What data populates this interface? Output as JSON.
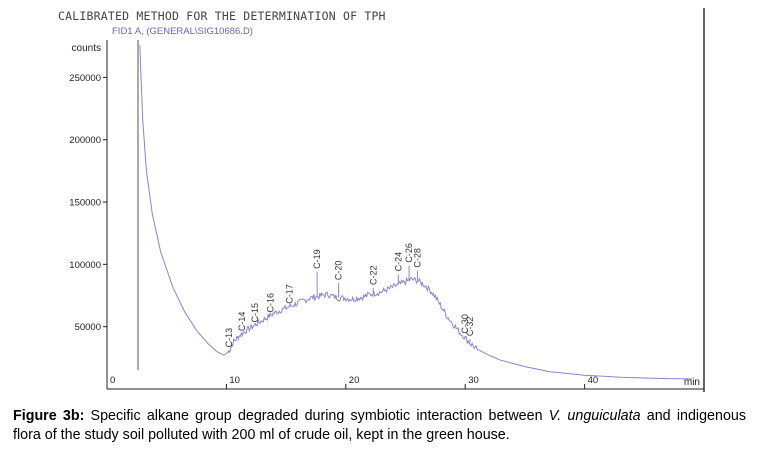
{
  "header": {
    "method_title": "CALIBRATED METHOD FOR THE DETERMINATION OF TPH",
    "signal_label": "FID1 A, (GENERAL\\SIG10686.D)"
  },
  "chart_data": {
    "type": "line",
    "title": "CALIBRATED METHOD FOR THE DETERMINATION OF TPH",
    "subtitle": "FID1 A, (GENERAL\\SIG10686.D)",
    "ylabel": "counts",
    "xlabel": "min",
    "xlim": [
      0,
      50
    ],
    "ylim": [
      0,
      280000
    ],
    "y_ticks": [
      50000,
      100000,
      150000,
      200000,
      250000
    ],
    "x_ticks": [
      0,
      10,
      20,
      30,
      40
    ],
    "grid": false,
    "series": [
      {
        "color": "#8a84d0",
        "x": [
          2.75,
          2.85,
          3.0,
          3.3,
          3.8,
          4.5,
          5.5,
          6.5,
          7.5,
          8.5,
          9.2,
          9.8,
          10.2,
          10.6,
          11.0,
          11.5,
          12.0,
          12.5,
          13.0,
          13.5,
          14.0,
          14.5,
          15.0,
          15.5,
          16.0,
          16.5,
          17.0,
          17.5,
          18.0,
          18.5,
          19.0,
          19.5,
          20.0,
          20.5,
          21.0,
          21.5,
          22.0,
          22.5,
          23.0,
          23.5,
          24.0,
          24.5,
          25.0,
          25.5,
          26.0,
          26.5,
          27.0,
          27.5,
          28.0,
          28.5,
          29.0,
          29.5,
          30.0,
          30.5,
          31.0,
          32.0,
          33.0,
          35.0,
          37.0,
          40.0,
          43.0,
          46.0,
          49.0
        ],
        "y": [
          276000,
          250000,
          215000,
          175000,
          140000,
          110000,
          82000,
          62000,
          47000,
          36000,
          30000,
          27000,
          30000,
          38000,
          42000,
          46000,
          49000,
          52000,
          55000,
          58000,
          61000,
          63000,
          65000,
          67000,
          69000,
          71000,
          73000,
          74000,
          75000,
          76000,
          74000,
          73000,
          73000,
          72000,
          73000,
          74000,
          76000,
          77000,
          78000,
          80000,
          82000,
          84000,
          86000,
          88000,
          87000,
          84000,
          80000,
          74000,
          66000,
          58000,
          52000,
          46000,
          41000,
          36000,
          32000,
          27000,
          23000,
          18000,
          14000,
          11000,
          9500,
          8500,
          8000
        ]
      }
    ],
    "peaks": [
      {
        "label": "C-13",
        "x": 10.2,
        "y": 31000
      },
      {
        "label": "C-14",
        "x": 11.3,
        "y": 44000
      },
      {
        "label": "C-15",
        "x": 12.4,
        "y": 51000
      },
      {
        "label": "C-16",
        "x": 13.7,
        "y": 59000
      },
      {
        "label": "C-17",
        "x": 15.3,
        "y": 66000
      },
      {
        "label": "C-19",
        "x": 17.6,
        "y": 94000
      },
      {
        "label": "C-20",
        "x": 19.4,
        "y": 85000
      },
      {
        "label": "C-22",
        "x": 22.3,
        "y": 81000
      },
      {
        "label": "C-24",
        "x": 24.4,
        "y": 92000
      },
      {
        "label": "C-26",
        "x": 25.3,
        "y": 99000
      },
      {
        "label": "C-28",
        "x": 26.0,
        "y": 95000
      },
      {
        "label": "C-30",
        "x": 30.0,
        "y": 42000
      },
      {
        "label": "C-32",
        "x": 30.4,
        "y": 40000
      }
    ]
  },
  "caption": {
    "label": "Figure 3b:",
    "text_before_species": " Specific alkane group degraded during symbiotic interaction between ",
    "species": "V. unguiculata",
    "text_after_species": " and indigenous flora of the study soil polluted with 200 ml of crude oil, kept in the green house."
  }
}
